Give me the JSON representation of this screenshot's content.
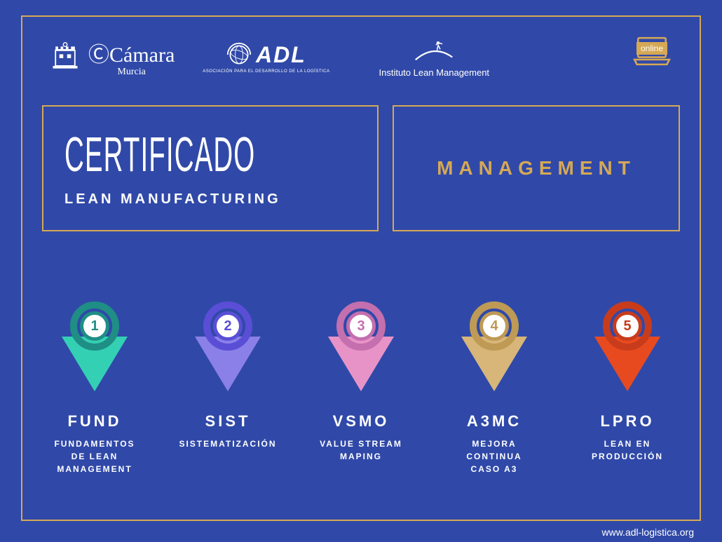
{
  "colors": {
    "background": "#3049a8",
    "accent": "#d5a855",
    "white": "#ffffff"
  },
  "logos": {
    "camara": {
      "name": "Cámara",
      "sub": "Murcia",
      "circled_c": "Ⓒ"
    },
    "adl": {
      "name": "ADL",
      "sub": "ASOCIACIÓN PARA EL DESARROLLO DE LA LOGÍSTICA"
    },
    "ilm": {
      "name": "Instituto Lean Management"
    },
    "online": {
      "label": "online"
    }
  },
  "box_left": {
    "title": "CERTIFICADO",
    "subtitle": "LEAN MANUFACTURING"
  },
  "box_right": {
    "label": "MANAGEMENT"
  },
  "modules": [
    {
      "n": "1",
      "code": "FUND",
      "desc": "FUNDAMENTOS DE LEAN MANAGEMENT",
      "fill": "#34d0b4",
      "ring": "#1f8e85",
      "numcolor": "#1f8e85"
    },
    {
      "n": "2",
      "code": "SIST",
      "desc": "SISTEMATIZACIÓN",
      "fill": "#8a80e8",
      "ring": "#5a4ed6",
      "numcolor": "#5a4ed6"
    },
    {
      "n": "3",
      "code": "VSMO",
      "desc": "VALUE STREAM MAPING",
      "fill": "#e893c7",
      "ring": "#c46fae",
      "numcolor": "#c46fae"
    },
    {
      "n": "4",
      "code": "A3MC",
      "desc": "MEJORA CONTINUA CASO A3",
      "fill": "#d8b679",
      "ring": "#be9a54",
      "numcolor": "#be9a54"
    },
    {
      "n": "5",
      "code": "LPRO",
      "desc": "LEAN EN PRODUCCIÓN",
      "fill": "#e84a1f",
      "ring": "#c83c1c",
      "numcolor": "#c83c1c"
    }
  ],
  "footer": {
    "url": "www.adl-logistica.org"
  }
}
